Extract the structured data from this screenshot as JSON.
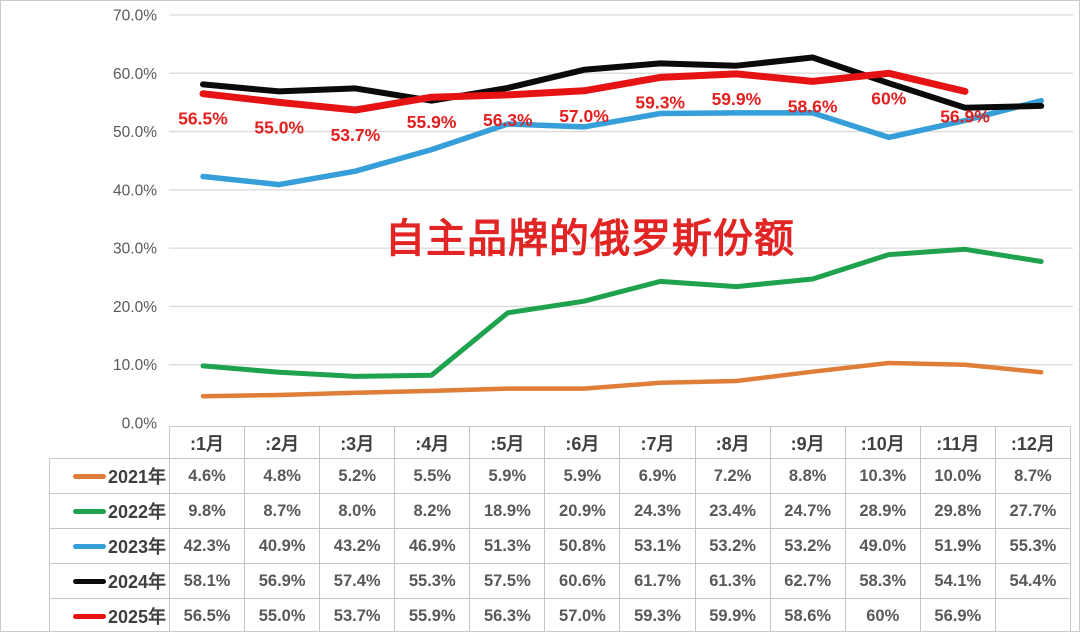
{
  "chart_data": {
    "type": "line",
    "title": "自主品牌的俄罗斯份额",
    "title_color": "#e12424",
    "grid": true,
    "legend_position": "table-rows-left",
    "ylim": [
      0,
      70
    ],
    "ytick_step": 10,
    "ytick_labels": [
      "0.0%",
      "10.0%",
      "20.0%",
      "30.0%",
      "40.0%",
      "50.0%",
      "60.0%",
      "70.0%"
    ],
    "categories": [
      ":1月",
      ":2月",
      ":3月",
      ":4月",
      ":5月",
      ":6月",
      ":7月",
      ":8月",
      ":9月",
      ":10月",
      ":11月",
      ":12月"
    ],
    "series": [
      {
        "name": "2021年",
        "color": "#de7e38",
        "values": [
          4.6,
          4.8,
          5.2,
          5.5,
          5.9,
          5.9,
          6.9,
          7.2,
          8.8,
          10.3,
          10.0,
          8.7
        ]
      },
      {
        "name": "2022年",
        "color": "#1fa24d",
        "values": [
          9.8,
          8.7,
          8.0,
          8.2,
          18.9,
          20.9,
          24.3,
          23.4,
          24.7,
          28.9,
          29.8,
          27.7
        ]
      },
      {
        "name": "2023年",
        "color": "#369fd9",
        "values": [
          42.3,
          40.9,
          43.2,
          46.9,
          51.3,
          50.8,
          53.1,
          53.2,
          53.2,
          49.0,
          51.9,
          55.3
        ]
      },
      {
        "name": "2024年",
        "color": "#0a0a0a",
        "values": [
          58.1,
          56.9,
          57.4,
          55.3,
          57.5,
          60.6,
          61.7,
          61.3,
          62.7,
          58.3,
          54.1,
          54.4
        ]
      },
      {
        "name": "2025年",
        "color": "#e51313",
        "values": [
          56.5,
          55.0,
          53.7,
          55.9,
          56.3,
          57.0,
          59.3,
          59.9,
          58.6,
          60,
          56.9,
          null
        ]
      }
    ],
    "data_labels": {
      "series": "2025年",
      "color": "#e32020",
      "labels": [
        "56.5%",
        "55.0%",
        "53.7%",
        "55.9%",
        "56.3%",
        "57.0%",
        "59.3%",
        "59.9%",
        "58.6%",
        "60%",
        "56.9%",
        ""
      ]
    }
  },
  "table": {
    "corner_label": "",
    "header": [
      ":1月",
      ":2月",
      ":3月",
      ":4月",
      ":5月",
      ":6月",
      ":7月",
      ":8月",
      ":9月",
      ":10月",
      ":11月",
      ":12月"
    ],
    "rows": [
      {
        "name": "2021年",
        "swatch_color": "#de7e38",
        "cells": [
          "4.6%",
          "4.8%",
          "5.2%",
          "5.5%",
          "5.9%",
          "5.9%",
          "6.9%",
          "7.2%",
          "8.8%",
          "10.3%",
          "10.0%",
          "8.7%"
        ]
      },
      {
        "name": "2022年",
        "swatch_color": "#1fa24d",
        "cells": [
          "9.8%",
          "8.7%",
          "8.0%",
          "8.2%",
          "18.9%",
          "20.9%",
          "24.3%",
          "23.4%",
          "24.7%",
          "28.9%",
          "29.8%",
          "27.7%"
        ]
      },
      {
        "name": "2023年",
        "swatch_color": "#369fd9",
        "cells": [
          "42.3%",
          "40.9%",
          "43.2%",
          "46.9%",
          "51.3%",
          "50.8%",
          "53.1%",
          "53.2%",
          "53.2%",
          "49.0%",
          "51.9%",
          "55.3%"
        ]
      },
      {
        "name": "2024年",
        "swatch_color": "#0a0a0a",
        "cells": [
          "58.1%",
          "56.9%",
          "57.4%",
          "55.3%",
          "57.5%",
          "60.6%",
          "61.7%",
          "61.3%",
          "62.7%",
          "58.3%",
          "54.1%",
          "54.4%"
        ]
      },
      {
        "name": "2025年",
        "swatch_color": "#e51313",
        "cells": [
          "56.5%",
          "55.0%",
          "53.7%",
          "55.9%",
          "56.3%",
          "57.0%",
          "59.3%",
          "59.9%",
          "58.6%",
          "60%",
          "56.9%",
          ""
        ]
      }
    ]
  }
}
